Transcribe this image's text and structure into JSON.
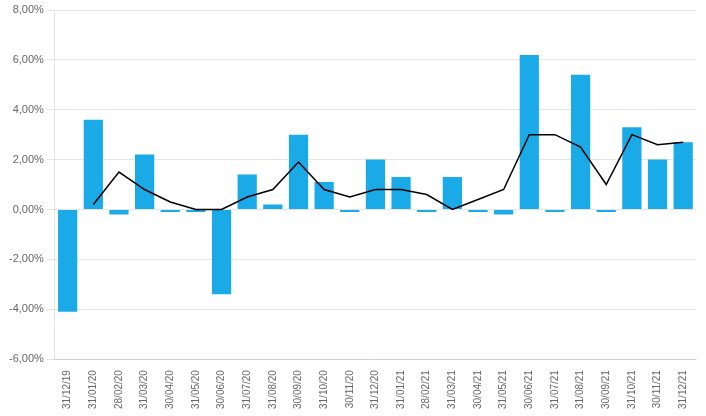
{
  "chart_data": {
    "type": "bar",
    "categories": [
      "31/12/19",
      "31/01/20",
      "28/02/20",
      "31/03/20",
      "30/04/20",
      "31/05/20",
      "30/06/20",
      "31/07/20",
      "31/08/20",
      "30/09/20",
      "31/10/20",
      "30/11/20",
      "31/12/20",
      "31/01/21",
      "28/02/21",
      "31/03/21",
      "30/04/21",
      "31/05/21",
      "30/06/21",
      "31/07/21",
      "31/08/21",
      "30/09/21",
      "31/10/21",
      "30/11/21",
      "31/12/21"
    ],
    "series": [
      {
        "type": "bar",
        "color": "#1BAAE8",
        "values": [
          -0.041,
          0.036,
          -0.002,
          0.022,
          -0.001,
          -0.001,
          -0.034,
          0.014,
          0.002,
          0.03,
          0.011,
          -0.001,
          0.02,
          0.013,
          -0.001,
          0.013,
          -0.001,
          -0.002,
          0.062,
          -0.001,
          0.054,
          -0.001,
          0.033,
          0.02,
          0.027
        ]
      },
      {
        "type": "line",
        "color": "#000000",
        "values": [
          null,
          0.002,
          0.015,
          0.008,
          0.003,
          0.0,
          0.0,
          0.005,
          0.008,
          0.019,
          0.008,
          0.005,
          0.008,
          0.008,
          0.006,
          0.0,
          0.004,
          0.008,
          0.03,
          0.03,
          0.025,
          0.01,
          0.03,
          0.026,
          0.027
        ]
      }
    ],
    "ylim": [
      -0.06,
      0.08
    ],
    "yticks": [
      {
        "value": -0.06,
        "label": "-6,00%"
      },
      {
        "value": -0.04,
        "label": "-4,00%"
      },
      {
        "value": -0.02,
        "label": "-2,00%"
      },
      {
        "value": 0.0,
        "label": "0,00%"
      },
      {
        "value": 0.02,
        "label": "2,00%"
      },
      {
        "value": 0.04,
        "label": "4,00%"
      },
      {
        "value": 0.06,
        "label": "6,00%"
      },
      {
        "value": 0.08,
        "label": "8,00%"
      }
    ],
    "grid": true
  }
}
